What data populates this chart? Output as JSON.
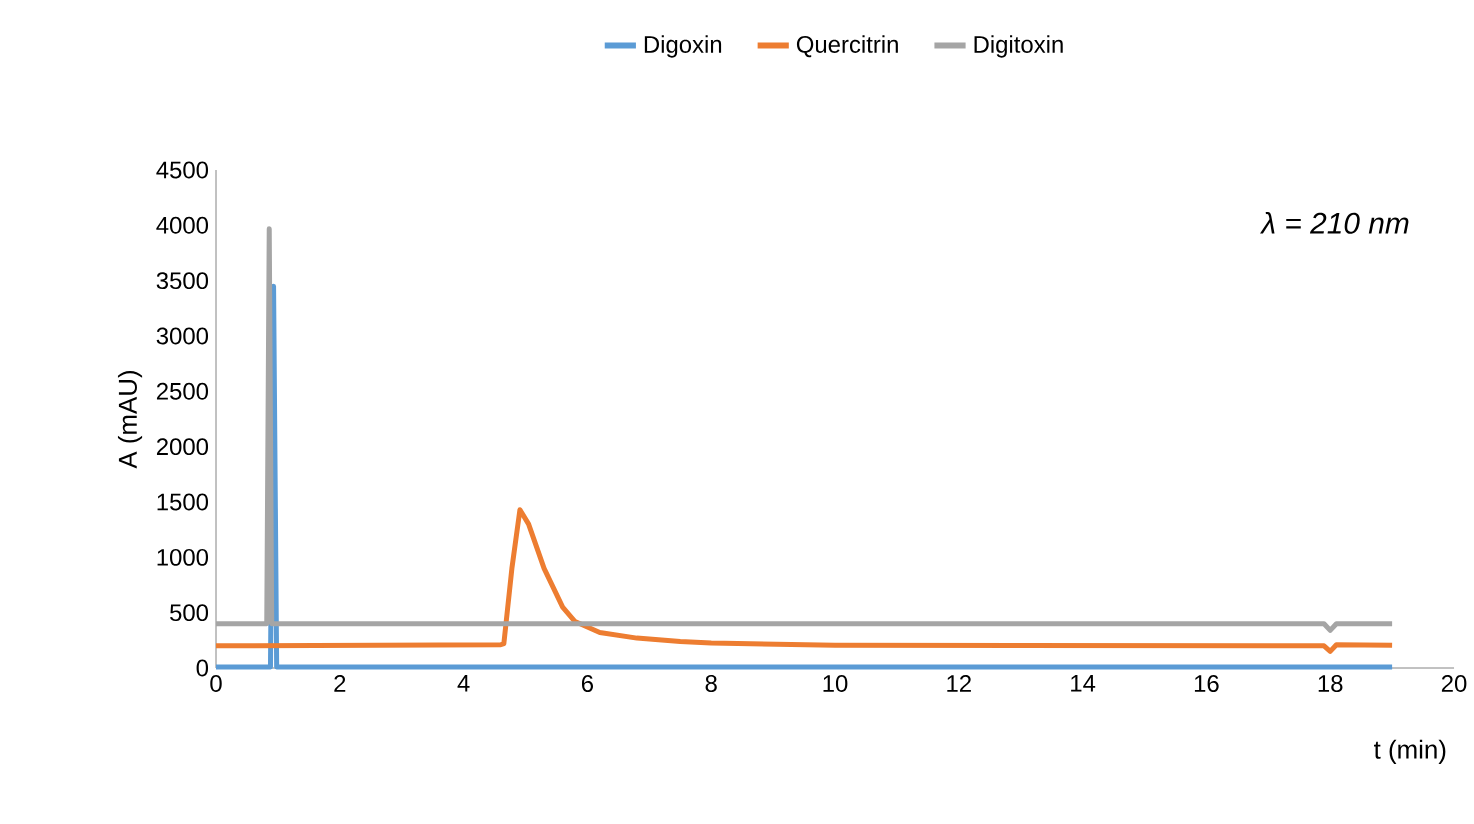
{
  "chart_data": {
    "type": "line",
    "xlabel": "t (min)",
    "ylabel": "A (mAU)",
    "annotations": [
      "λ = 210 nm"
    ],
    "xlim": [
      0,
      20
    ],
    "xticks": [
      0,
      2,
      4,
      6,
      8,
      10,
      12,
      14,
      16,
      18,
      20
    ],
    "ylim": [
      0,
      4500
    ],
    "yticks": [
      0,
      500,
      1000,
      1500,
      2000,
      2500,
      3000,
      3500,
      4000,
      4500
    ],
    "grid": false,
    "legend": "top",
    "marker": "none",
    "line_style": "solid",
    "series": [
      {
        "name": "Digoxin",
        "color": "#5b9bd5",
        "x": [
          0,
          0.88,
          0.93,
          0.98,
          18.0,
          19
        ],
        "values": [
          10,
          10,
          3450,
          10,
          10,
          10
        ]
      },
      {
        "name": "Quercitrin",
        "color": "#ed7d31",
        "x": [
          0,
          4.6,
          4.65,
          4.78,
          4.91,
          5.05,
          5.3,
          5.6,
          5.8,
          6.2,
          6.8,
          7.5,
          8,
          10,
          17.9,
          18.0,
          18.1,
          19
        ],
        "values": [
          200,
          210,
          220,
          900,
          1430,
          1300,
          900,
          550,
          420,
          320,
          270,
          240,
          225,
          205,
          200,
          150,
          210,
          205
        ]
      },
      {
        "name": "Digitoxin",
        "color": "#a5a5a5",
        "x": [
          0,
          0.82,
          0.86,
          0.9,
          17.9,
          18.0,
          18.1,
          19
        ],
        "values": [
          400,
          400,
          3970,
          400,
          400,
          340,
          400,
          400
        ]
      }
    ]
  }
}
